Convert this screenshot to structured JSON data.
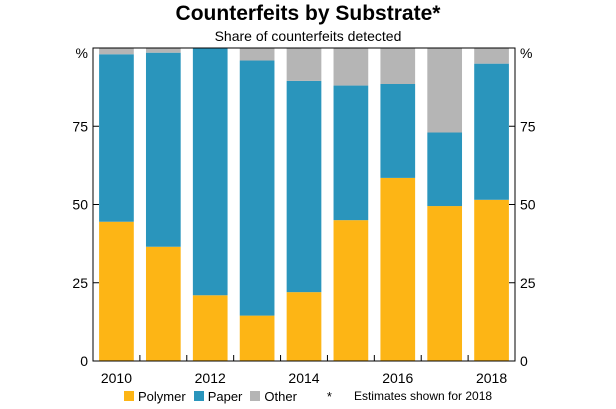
{
  "chart_data": {
    "type": "bar",
    "stacked": true,
    "title": "Counterfeits by Substrate*",
    "subtitle": "Share of counterfeits detected",
    "unit_left": "%",
    "unit_right": "%",
    "categories": [
      "2010",
      "2011",
      "2012",
      "2013",
      "2014",
      "2015",
      "2016",
      "2017",
      "2018"
    ],
    "x_tick_labels": [
      "2010",
      "2012",
      "2014",
      "2016",
      "2018"
    ],
    "y_ticks": [
      "0",
      "25",
      "50",
      "75"
    ],
    "ylim": [
      0,
      100
    ],
    "grid": false,
    "legend_position": "bottom",
    "series": [
      {
        "name": "Polymer",
        "color": "#fdb515",
        "values": [
          44.5,
          36.5,
          21,
          14.5,
          22,
          45,
          58.5,
          49.5,
          51.5
        ]
      },
      {
        "name": "Paper",
        "color": "#2a95bc",
        "values": [
          53.5,
          62,
          79,
          81.5,
          67.5,
          43,
          30,
          23.5,
          43.5
        ]
      },
      {
        "name": "Other",
        "color": "#b5b5b5",
        "values": [
          2,
          1.5,
          0,
          4,
          10.5,
          12,
          11.5,
          27,
          5
        ]
      }
    ],
    "note_marker": "*",
    "note": "Estimates shown for 2018"
  }
}
